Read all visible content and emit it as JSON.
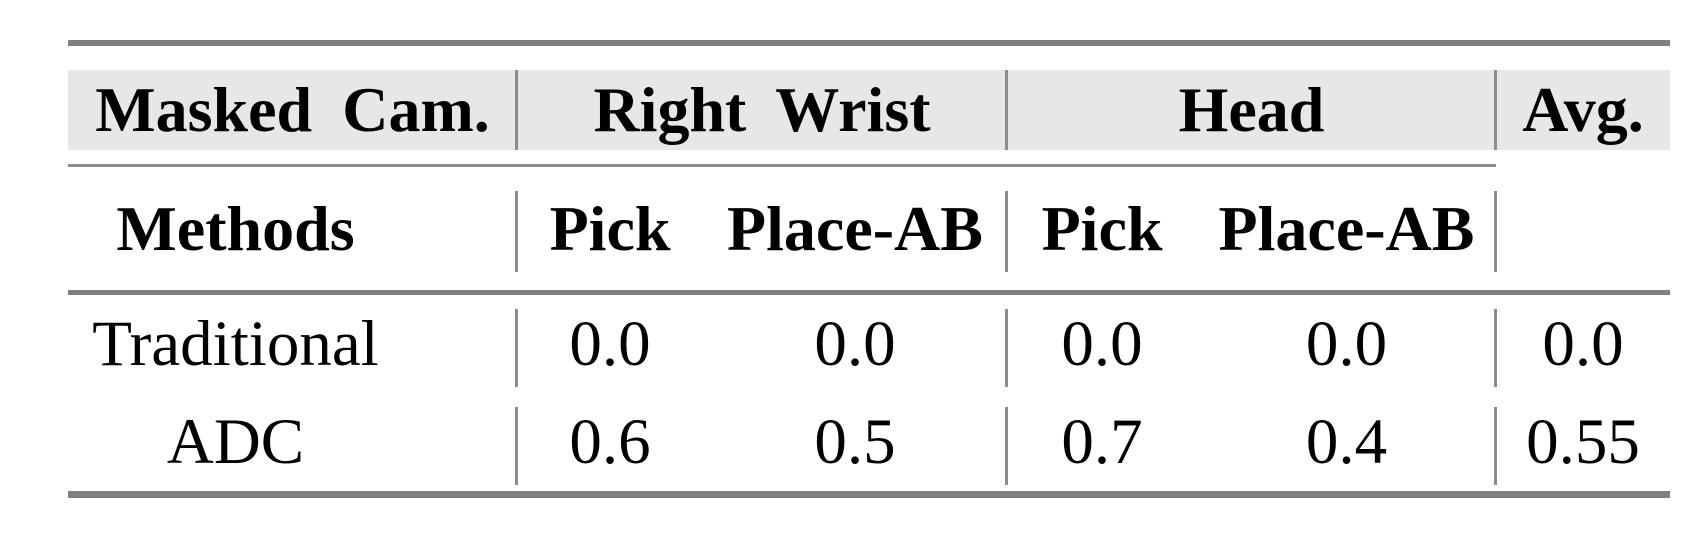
{
  "table": {
    "top_header": {
      "masked_cam": "Masked Cam.",
      "right_wrist": "Right Wrist",
      "head": "Head",
      "avg": "Avg."
    },
    "sub_header": {
      "methods": "Methods",
      "rw_pick": "Pick",
      "rw_place_ab": "Place-AB",
      "head_pick": "Pick",
      "head_place_ab": "Place-AB"
    },
    "rows": [
      {
        "cells": [
          "Traditional",
          "0.0",
          "0.0",
          "0.0",
          "0.0",
          "0.0"
        ]
      },
      {
        "cells": [
          "ADC",
          "0.6",
          "0.5",
          "0.7",
          "0.4",
          "0.55"
        ]
      }
    ],
    "colors": {
      "rule_gray": "#7f7f7f",
      "line_gray": "#8c8c8c",
      "header_bg": "#e7e7e7",
      "text": "#000000"
    }
  },
  "chart_data": {
    "type": "table",
    "column_groups": [
      "Masked Cam.",
      "Right Wrist",
      "Head",
      "Avg."
    ],
    "columns": [
      "Methods",
      "Right Wrist Pick",
      "Right Wrist Place-AB",
      "Head Pick",
      "Head Place-AB",
      "Avg."
    ],
    "rows": [
      [
        "Traditional",
        0.0,
        0.0,
        0.0,
        0.0,
        0.0
      ],
      [
        "ADC",
        0.6,
        0.5,
        0.7,
        0.4,
        0.55
      ]
    ]
  }
}
